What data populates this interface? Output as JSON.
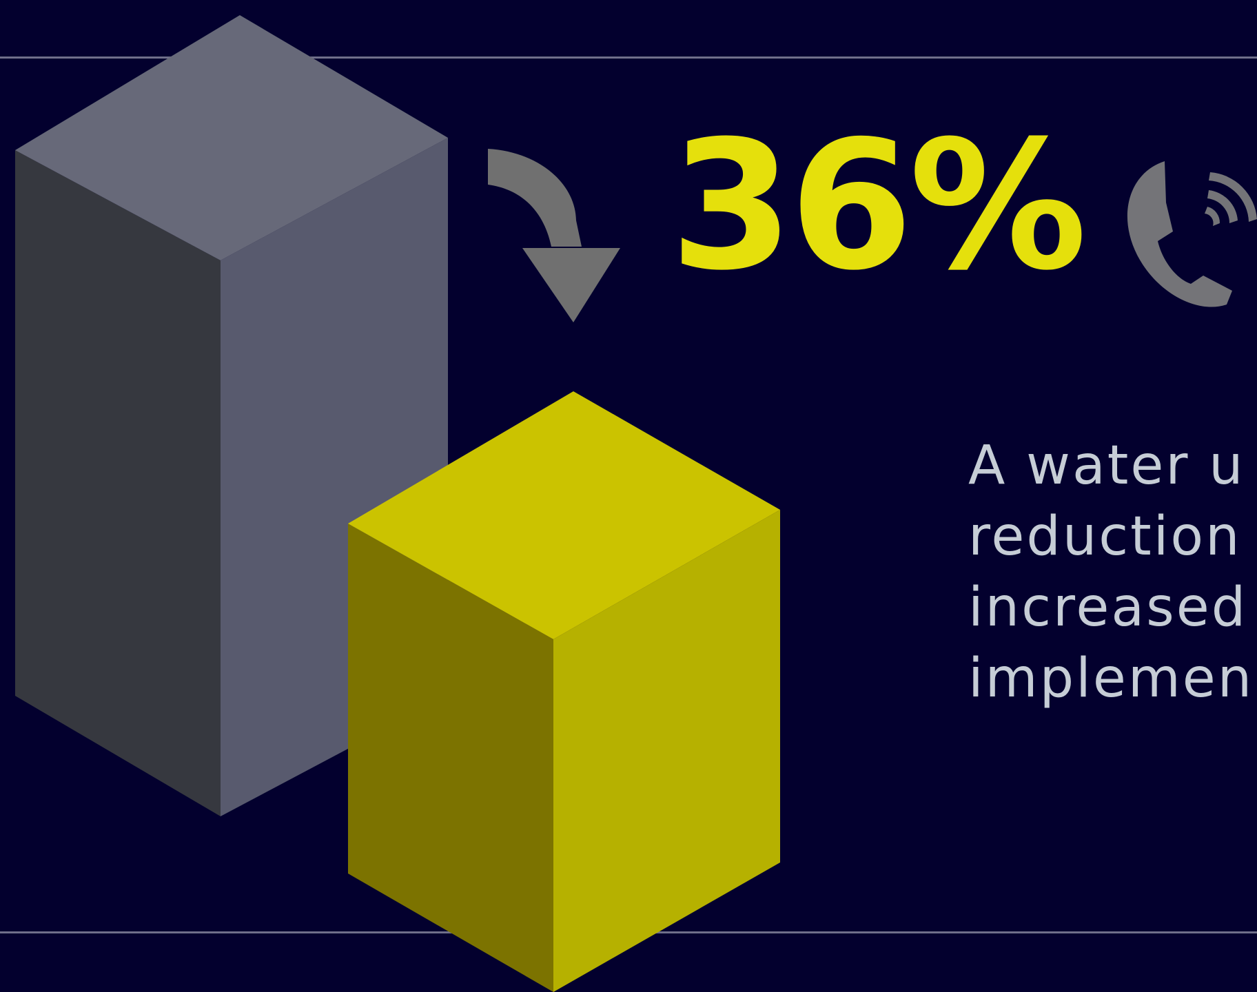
{
  "colors": {
    "background": "#03002e",
    "accent_yellow": "#e5e00c",
    "bar_gray": "#585a6e",
    "arrow_gray": "#707070",
    "text_light": "#c6cdd6",
    "rule": "#6f6f8a"
  },
  "stat": {
    "value": "36%"
  },
  "icons": {
    "down_arrow": "curved-down-arrow-icon",
    "phone": "phone-ringing-icon"
  },
  "description": {
    "lines": [
      "A water u",
      "reduction",
      "increased",
      "implemen"
    ]
  }
}
